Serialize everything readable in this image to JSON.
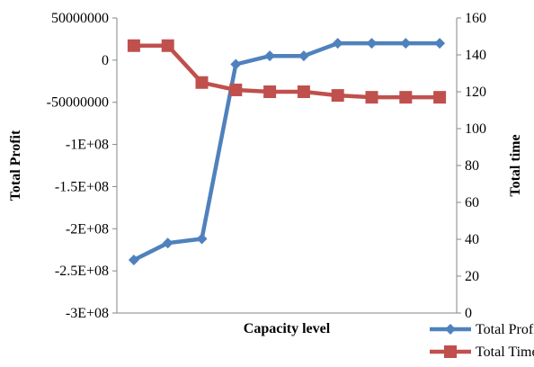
{
  "chart_data": {
    "type": "line",
    "title": "",
    "xlabel": "Capacity level",
    "ylabel_left": "Total Profit",
    "ylabel_right": "Total time",
    "x": [
      1,
      2,
      3,
      4,
      5,
      6,
      7,
      8,
      9,
      10
    ],
    "ylim_left": [
      -300000000,
      50000000
    ],
    "yticks_left": [
      "50000000",
      "0",
      "-50000000",
      "-1E+08",
      "-1.5E+08",
      "-2E+08",
      "-2.5E+08",
      "-3E+08"
    ],
    "yticks_left_values": [
      50000000,
      0,
      -50000000,
      -100000000,
      -150000000,
      -200000000,
      -250000000,
      -300000000
    ],
    "ylim_right": [
      0,
      160
    ],
    "yticks_right": [
      "160",
      "140",
      "120",
      "100",
      "80",
      "60",
      "40",
      "20",
      "0"
    ],
    "yticks_right_values": [
      160,
      140,
      120,
      100,
      80,
      60,
      40,
      20,
      0
    ],
    "grid": false,
    "legend_position": "bottom-right",
    "series": [
      {
        "name": "Total Profit",
        "axis": "left",
        "color": "#4f81bd",
        "marker": "diamond",
        "values": [
          -237000000,
          -217000000,
          -212000000,
          -5000000,
          5000000,
          5000000,
          20000000,
          20000000,
          20000000,
          20000000
        ]
      },
      {
        "name": "Total Time",
        "axis": "right",
        "color": "#c0504d",
        "marker": "square",
        "values": [
          145,
          145,
          125,
          121,
          120,
          120,
          118,
          117,
          117,
          117
        ]
      }
    ]
  }
}
